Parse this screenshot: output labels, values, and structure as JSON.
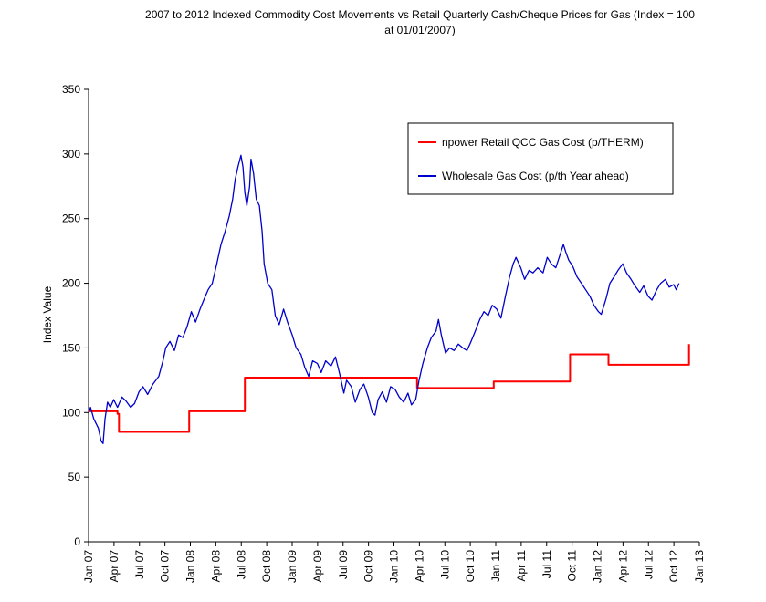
{
  "chart_data": {
    "type": "line",
    "title_line1": "2007 to 2012 Indexed Commodity Cost Movements vs Retail Quarterly Cash/Cheque Prices for Gas (Index = 100",
    "title_line2": "at 01/01/2007)",
    "xlabel": "",
    "ylabel": "Index Value",
    "ylim": [
      0,
      350
    ],
    "yticks": [
      0,
      50,
      100,
      150,
      200,
      250,
      300,
      350
    ],
    "xlim": [
      "2007-01-01",
      "2013-01-01"
    ],
    "xtick_labels": [
      "Jan 07",
      "Apr 07",
      "Jul 07",
      "Oct 07",
      "Jan 08",
      "Apr 08",
      "Jul 08",
      "Oct 08",
      "Jan 09",
      "Apr 09",
      "Jul 09",
      "Oct 09",
      "Jan 10",
      "Apr 10",
      "Jul 10",
      "Oct 10",
      "Jan 11",
      "Apr 11",
      "Jul 11",
      "Oct 11",
      "Jan 12",
      "Apr 12",
      "Jul 12",
      "Oct 12",
      "Jan 13"
    ],
    "grid": false,
    "legend_position": "top-right",
    "colors": {
      "retail": "#ff0000",
      "wholesale": "#0000cc"
    },
    "series": [
      {
        "name": "npower Retail QCC Gas Cost (p/THERM)",
        "step": true,
        "points": [
          [
            "2007-01-01",
            101
          ],
          [
            "2007-04-15",
            99
          ],
          [
            "2007-04-20",
            85
          ],
          [
            "2007-12-28",
            101
          ],
          [
            "2008-07-15",
            127
          ],
          [
            "2010-03-25",
            119
          ],
          [
            "2010-12-25",
            124
          ],
          [
            "2011-09-25",
            145
          ],
          [
            "2012-02-10",
            137
          ],
          [
            "2012-11-25",
            153
          ]
        ]
      },
      {
        "name": "Wholesale Gas Cost (p/th Year ahead)",
        "step": false,
        "points": [
          [
            "2007-01-01",
            100
          ],
          [
            "2007-01-08",
            104
          ],
          [
            "2007-01-20",
            95
          ],
          [
            "2007-02-05",
            88
          ],
          [
            "2007-02-15",
            78
          ],
          [
            "2007-02-22",
            76
          ],
          [
            "2007-03-01",
            95
          ],
          [
            "2007-03-10",
            108
          ],
          [
            "2007-03-20",
            104
          ],
          [
            "2007-04-01",
            110
          ],
          [
            "2007-04-15",
            104
          ],
          [
            "2007-05-01",
            112
          ],
          [
            "2007-05-15",
            109
          ],
          [
            "2007-06-01",
            104
          ],
          [
            "2007-06-15",
            107
          ],
          [
            "2007-07-01",
            116
          ],
          [
            "2007-07-15",
            120
          ],
          [
            "2007-08-01",
            114
          ],
          [
            "2007-08-20",
            122
          ],
          [
            "2007-09-10",
            128
          ],
          [
            "2007-09-25",
            140
          ],
          [
            "2007-10-05",
            150
          ],
          [
            "2007-10-20",
            155
          ],
          [
            "2007-11-05",
            148
          ],
          [
            "2007-11-20",
            160
          ],
          [
            "2007-12-05",
            158
          ],
          [
            "2007-12-20",
            166
          ],
          [
            "2008-01-05",
            178
          ],
          [
            "2008-01-20",
            170
          ],
          [
            "2008-02-05",
            180
          ],
          [
            "2008-02-20",
            188
          ],
          [
            "2008-03-05",
            195
          ],
          [
            "2008-03-20",
            200
          ],
          [
            "2008-04-05",
            215
          ],
          [
            "2008-04-20",
            230
          ],
          [
            "2008-05-05",
            240
          ],
          [
            "2008-05-20",
            252
          ],
          [
            "2008-06-01",
            265
          ],
          [
            "2008-06-10",
            280
          ],
          [
            "2008-06-20",
            290
          ],
          [
            "2008-07-01",
            299
          ],
          [
            "2008-07-08",
            290
          ],
          [
            "2008-07-15",
            270
          ],
          [
            "2008-07-22",
            260
          ],
          [
            "2008-08-01",
            275
          ],
          [
            "2008-08-06",
            296
          ],
          [
            "2008-08-15",
            285
          ],
          [
            "2008-08-25",
            265
          ],
          [
            "2008-09-05",
            260
          ],
          [
            "2008-09-15",
            240
          ],
          [
            "2008-09-22",
            215
          ],
          [
            "2008-10-05",
            200
          ],
          [
            "2008-10-20",
            195
          ],
          [
            "2008-11-01",
            175
          ],
          [
            "2008-11-15",
            168
          ],
          [
            "2008-12-01",
            180
          ],
          [
            "2008-12-15",
            170
          ],
          [
            "2009-01-01",
            160
          ],
          [
            "2009-01-15",
            150
          ],
          [
            "2009-02-01",
            145
          ],
          [
            "2009-02-15",
            135
          ],
          [
            "2009-03-01",
            128
          ],
          [
            "2009-03-15",
            140
          ],
          [
            "2009-04-01",
            138
          ],
          [
            "2009-04-15",
            131
          ],
          [
            "2009-05-01",
            140
          ],
          [
            "2009-05-20",
            136
          ],
          [
            "2009-06-05",
            143
          ],
          [
            "2009-06-20",
            130
          ],
          [
            "2009-07-05",
            115
          ],
          [
            "2009-07-15",
            125
          ],
          [
            "2009-08-01",
            120
          ],
          [
            "2009-08-15",
            108
          ],
          [
            "2009-09-01",
            118
          ],
          [
            "2009-09-15",
            122
          ],
          [
            "2009-10-01",
            112
          ],
          [
            "2009-10-15",
            100
          ],
          [
            "2009-10-25",
            98
          ],
          [
            "2009-11-05",
            110
          ],
          [
            "2009-11-20",
            116
          ],
          [
            "2009-12-05",
            108
          ],
          [
            "2009-12-20",
            120
          ],
          [
            "2010-01-05",
            118
          ],
          [
            "2010-01-20",
            112
          ],
          [
            "2010-02-05",
            108
          ],
          [
            "2010-02-20",
            115
          ],
          [
            "2010-03-05",
            106
          ],
          [
            "2010-03-20",
            110
          ],
          [
            "2010-04-01",
            125
          ],
          [
            "2010-04-15",
            138
          ],
          [
            "2010-05-01",
            150
          ],
          [
            "2010-05-15",
            158
          ],
          [
            "2010-06-01",
            163
          ],
          [
            "2010-06-10",
            172
          ],
          [
            "2010-06-20",
            160
          ],
          [
            "2010-07-05",
            146
          ],
          [
            "2010-07-20",
            150
          ],
          [
            "2010-08-05",
            148
          ],
          [
            "2010-08-20",
            153
          ],
          [
            "2010-09-05",
            150
          ],
          [
            "2010-09-20",
            148
          ],
          [
            "2010-10-05",
            155
          ],
          [
            "2010-10-20",
            163
          ],
          [
            "2010-11-05",
            172
          ],
          [
            "2010-11-20",
            178
          ],
          [
            "2010-12-05",
            175
          ],
          [
            "2010-12-20",
            183
          ],
          [
            "2011-01-05",
            180
          ],
          [
            "2011-01-20",
            173
          ],
          [
            "2011-02-05",
            190
          ],
          [
            "2011-02-20",
            205
          ],
          [
            "2011-03-05",
            215
          ],
          [
            "2011-03-15",
            220
          ],
          [
            "2011-04-01",
            212
          ],
          [
            "2011-04-15",
            203
          ],
          [
            "2011-05-01",
            210
          ],
          [
            "2011-05-15",
            208
          ],
          [
            "2011-06-01",
            212
          ],
          [
            "2011-06-20",
            208
          ],
          [
            "2011-07-05",
            220
          ],
          [
            "2011-07-20",
            215
          ],
          [
            "2011-08-05",
            212
          ],
          [
            "2011-08-20",
            222
          ],
          [
            "2011-09-01",
            230
          ],
          [
            "2011-09-10",
            224
          ],
          [
            "2011-09-20",
            218
          ],
          [
            "2011-10-05",
            213
          ],
          [
            "2011-10-20",
            205
          ],
          [
            "2011-11-05",
            200
          ],
          [
            "2011-11-20",
            195
          ],
          [
            "2011-12-05",
            190
          ],
          [
            "2011-12-20",
            183
          ],
          [
            "2012-01-05",
            178
          ],
          [
            "2012-01-15",
            176
          ],
          [
            "2012-02-01",
            188
          ],
          [
            "2012-02-15",
            200
          ],
          [
            "2012-03-01",
            205
          ],
          [
            "2012-03-15",
            210
          ],
          [
            "2012-04-01",
            215
          ],
          [
            "2012-04-15",
            208
          ],
          [
            "2012-05-01",
            203
          ],
          [
            "2012-05-15",
            198
          ],
          [
            "2012-06-01",
            193
          ],
          [
            "2012-06-15",
            198
          ],
          [
            "2012-07-01",
            190
          ],
          [
            "2012-07-15",
            187
          ],
          [
            "2012-08-01",
            195
          ],
          [
            "2012-08-15",
            200
          ],
          [
            "2012-09-01",
            203
          ],
          [
            "2012-09-15",
            197
          ],
          [
            "2012-10-01",
            199
          ],
          [
            "2012-10-10",
            195
          ],
          [
            "2012-10-20",
            200
          ]
        ]
      }
    ]
  }
}
